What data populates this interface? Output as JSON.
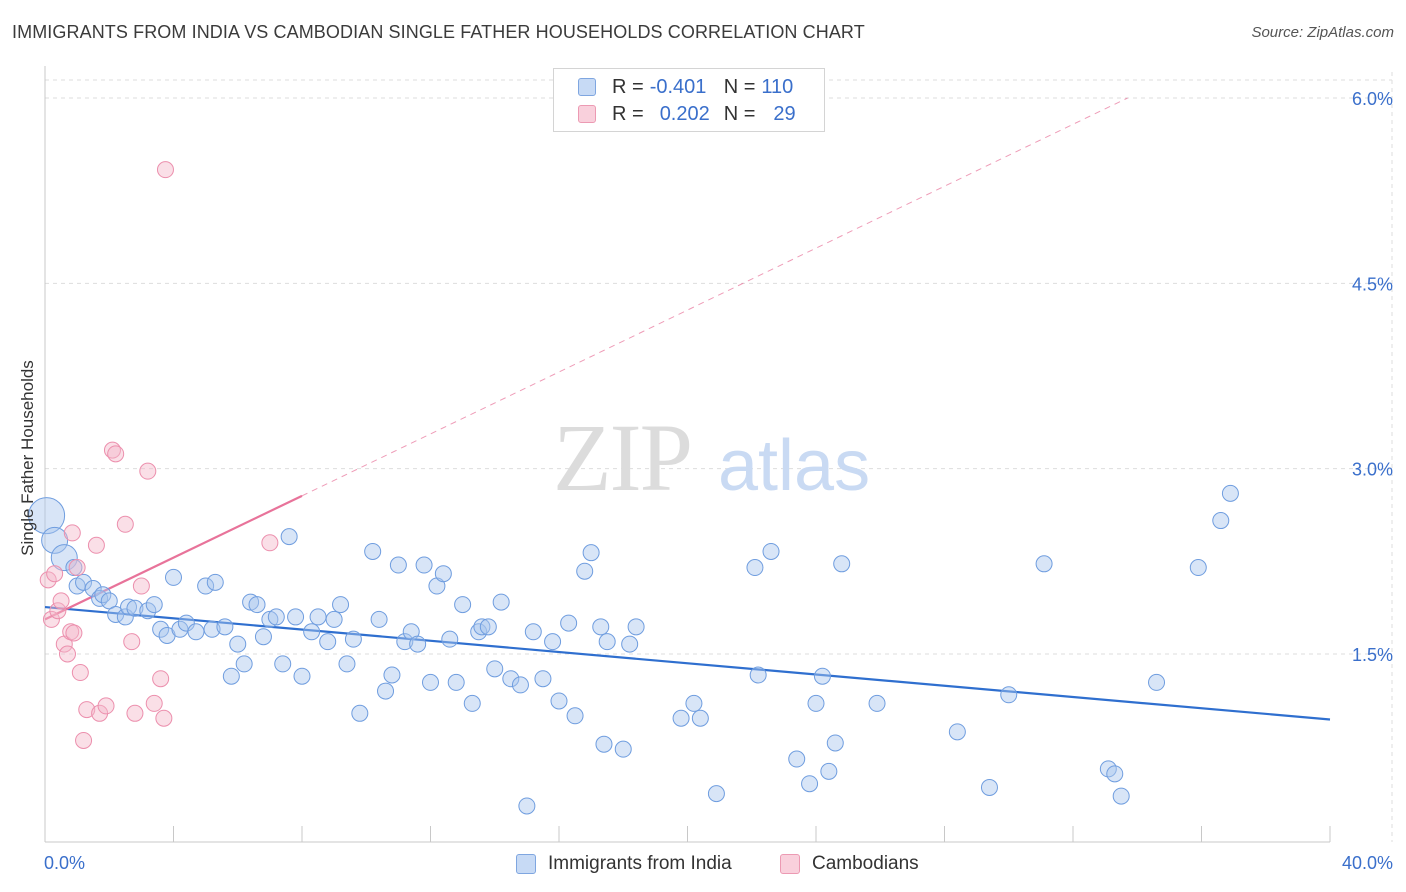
{
  "title": "IMMIGRANTS FROM INDIA VS CAMBODIAN SINGLE FATHER HOUSEHOLDS CORRELATION CHART",
  "source": "Source: ZipAtlas.com",
  "watermark": {
    "zip": "ZIP",
    "atlas": "atlas"
  },
  "legend": {
    "rows": [
      {
        "r_label": "R =",
        "r_value": "-0.401",
        "n_label": "N =",
        "n_value": "110",
        "color": "#a9c5ee"
      },
      {
        "r_label": "R =",
        "r_value": "0.202",
        "n_label": "N =",
        "n_value": "29",
        "color": "#f4b8c9"
      }
    ]
  },
  "bottom_legend": {
    "india": "Immigrants from India",
    "cambodians": "Cambodians"
  },
  "chart_data": {
    "type": "scatter",
    "title": "IMMIGRANTS FROM INDIA VS CAMBODIAN SINGLE FATHER HOUSEHOLDS CORRELATION CHART",
    "xlabel": "",
    "ylabel": "Single Father Households",
    "xlim": [
      0,
      40
    ],
    "ylim": [
      0,
      6.3
    ],
    "x_tick_labels": [
      "0.0%",
      "40.0%"
    ],
    "y_ticks": [
      1.5,
      3.0,
      4.5,
      6.0
    ],
    "y_tick_labels": [
      "1.5%",
      "3.0%",
      "4.5%",
      "6.0%"
    ],
    "grid": true,
    "legend_placement": "top-center",
    "colors": {
      "india": "#a9c5ee",
      "india_line": "#2f6fcf",
      "cambodians": "#f4b8c9",
      "cambodians_line": "#e8739a",
      "tick_text": "#3a6fcb"
    },
    "series": [
      {
        "name": "Immigrants from India",
        "trend": {
          "x": [
            0,
            40
          ],
          "y": [
            1.88,
            0.97
          ]
        },
        "points": [
          [
            0.05,
            2.62,
            3
          ],
          [
            0.3,
            2.42,
            2
          ],
          [
            0.6,
            2.28,
            2
          ],
          [
            0.9,
            2.2,
            1
          ],
          [
            1.0,
            2.05,
            1
          ],
          [
            1.2,
            2.08,
            1
          ],
          [
            1.5,
            2.03,
            1
          ],
          [
            1.7,
            1.95,
            1
          ],
          [
            1.8,
            1.98,
            1
          ],
          [
            2.0,
            1.93,
            1
          ],
          [
            2.2,
            1.82,
            1
          ],
          [
            2.5,
            1.8,
            1
          ],
          [
            2.6,
            1.88,
            1
          ],
          [
            2.8,
            1.87,
            1
          ],
          [
            3.2,
            1.85,
            1
          ],
          [
            3.4,
            1.9,
            1
          ],
          [
            3.6,
            1.7,
            1
          ],
          [
            3.8,
            1.65,
            1
          ],
          [
            4.0,
            2.12,
            1
          ],
          [
            4.2,
            1.7,
            1
          ],
          [
            4.4,
            1.75,
            1
          ],
          [
            4.7,
            1.68,
            1
          ],
          [
            5.0,
            2.05,
            1
          ],
          [
            5.2,
            1.7,
            1
          ],
          [
            5.3,
            2.08,
            1
          ],
          [
            5.6,
            1.72,
            1
          ],
          [
            5.8,
            1.32,
            1
          ],
          [
            6.0,
            1.58,
            1
          ],
          [
            6.2,
            1.42,
            1
          ],
          [
            6.4,
            1.92,
            1
          ],
          [
            6.6,
            1.9,
            1
          ],
          [
            6.8,
            1.64,
            1
          ],
          [
            7.0,
            1.78,
            1
          ],
          [
            7.2,
            1.8,
            1
          ],
          [
            7.4,
            1.42,
            1
          ],
          [
            7.6,
            2.45,
            1
          ],
          [
            7.8,
            1.8,
            1
          ],
          [
            8.0,
            1.32,
            1
          ],
          [
            8.3,
            1.68,
            1
          ],
          [
            8.5,
            1.8,
            1
          ],
          [
            8.8,
            1.6,
            1
          ],
          [
            9.0,
            1.78,
            1
          ],
          [
            9.2,
            1.9,
            1
          ],
          [
            9.4,
            1.42,
            1
          ],
          [
            9.6,
            1.62,
            1
          ],
          [
            9.8,
            1.02,
            1
          ],
          [
            10.2,
            2.33,
            1
          ],
          [
            10.4,
            1.78,
            1
          ],
          [
            10.6,
            1.2,
            1
          ],
          [
            10.8,
            1.33,
            1
          ],
          [
            11.0,
            2.22,
            1
          ],
          [
            11.2,
            1.6,
            1
          ],
          [
            11.4,
            1.68,
            1
          ],
          [
            11.6,
            1.58,
            1
          ],
          [
            11.8,
            2.22,
            1
          ],
          [
            12.0,
            1.27,
            1
          ],
          [
            12.2,
            2.05,
            1
          ],
          [
            12.4,
            2.15,
            1
          ],
          [
            12.6,
            1.62,
            1
          ],
          [
            12.8,
            1.27,
            1
          ],
          [
            13.0,
            1.9,
            1
          ],
          [
            13.3,
            1.1,
            1
          ],
          [
            13.5,
            1.68,
            1
          ],
          [
            13.6,
            1.72,
            1
          ],
          [
            13.8,
            1.72,
            1
          ],
          [
            14.0,
            1.38,
            1
          ],
          [
            14.2,
            1.92,
            1
          ],
          [
            14.5,
            1.3,
            1
          ],
          [
            14.8,
            1.25,
            1
          ],
          [
            15.0,
            0.27,
            1
          ],
          [
            15.2,
            1.68,
            1
          ],
          [
            15.5,
            1.3,
            1
          ],
          [
            15.8,
            1.6,
            1
          ],
          [
            16.0,
            1.12,
            1
          ],
          [
            16.3,
            1.75,
            1
          ],
          [
            16.5,
            1.0,
            1
          ],
          [
            16.8,
            2.17,
            1
          ],
          [
            17.0,
            2.32,
            1
          ],
          [
            17.3,
            1.72,
            1
          ],
          [
            17.4,
            0.77,
            1
          ],
          [
            17.5,
            1.6,
            1
          ],
          [
            18.0,
            0.73,
            1
          ],
          [
            18.2,
            1.58,
            1
          ],
          [
            18.4,
            1.72,
            1
          ],
          [
            19.8,
            0.98,
            1
          ],
          [
            20.2,
            1.1,
            1
          ],
          [
            20.4,
            0.98,
            1
          ],
          [
            20.9,
            0.37,
            1
          ],
          [
            22.1,
            2.2,
            1
          ],
          [
            22.2,
            1.33,
            1
          ],
          [
            22.6,
            2.33,
            1
          ],
          [
            23.4,
            0.65,
            1
          ],
          [
            23.8,
            0.45,
            1
          ],
          [
            24.0,
            1.1,
            1
          ],
          [
            24.2,
            1.32,
            1
          ],
          [
            24.4,
            0.55,
            1
          ],
          [
            24.6,
            0.78,
            1
          ],
          [
            24.8,
            2.23,
            1
          ],
          [
            25.9,
            1.1,
            1
          ],
          [
            28.4,
            0.87,
            1
          ],
          [
            29.4,
            0.42,
            1
          ],
          [
            30.0,
            1.17,
            1
          ],
          [
            31.1,
            2.23,
            1
          ],
          [
            33.1,
            0.57,
            1
          ],
          [
            33.3,
            0.53,
            1
          ],
          [
            33.5,
            0.35,
            1
          ],
          [
            34.6,
            1.27,
            1
          ],
          [
            35.9,
            2.2,
            1
          ],
          [
            36.6,
            2.58,
            1
          ],
          [
            36.9,
            2.8,
            1
          ]
        ]
      },
      {
        "name": "Cambodians",
        "trend": {
          "x": [
            0,
            8.0
          ],
          "y": [
            1.78,
            2.78
          ]
        },
        "trend_extension": {
          "x": [
            8.0,
            33.7
          ],
          "y": [
            2.78,
            6.0
          ]
        },
        "points": [
          [
            0.1,
            2.1,
            1
          ],
          [
            0.2,
            1.78,
            1
          ],
          [
            0.3,
            2.15,
            1
          ],
          [
            0.4,
            1.85,
            1
          ],
          [
            0.5,
            1.93,
            1
          ],
          [
            0.6,
            1.58,
            1
          ],
          [
            0.7,
            1.5,
            1
          ],
          [
            0.8,
            1.68,
            1
          ],
          [
            0.85,
            2.48,
            1
          ],
          [
            0.9,
            1.67,
            1
          ],
          [
            1.0,
            2.2,
            1
          ],
          [
            1.1,
            1.35,
            1
          ],
          [
            1.2,
            0.8,
            1
          ],
          [
            1.3,
            1.05,
            1
          ],
          [
            1.6,
            2.38,
            1
          ],
          [
            1.7,
            1.02,
            1
          ],
          [
            1.9,
            1.08,
            1
          ],
          [
            2.1,
            3.15,
            1
          ],
          [
            2.2,
            3.12,
            1
          ],
          [
            2.5,
            2.55,
            1
          ],
          [
            2.7,
            1.6,
            1
          ],
          [
            2.8,
            1.02,
            1
          ],
          [
            3.0,
            2.05,
            1
          ],
          [
            3.2,
            2.98,
            1
          ],
          [
            3.4,
            1.1,
            1
          ],
          [
            3.6,
            1.3,
            1
          ],
          [
            3.7,
            0.98,
            1
          ],
          [
            3.75,
            5.42,
            1
          ],
          [
            7.0,
            2.4,
            1
          ]
        ]
      }
    ]
  }
}
